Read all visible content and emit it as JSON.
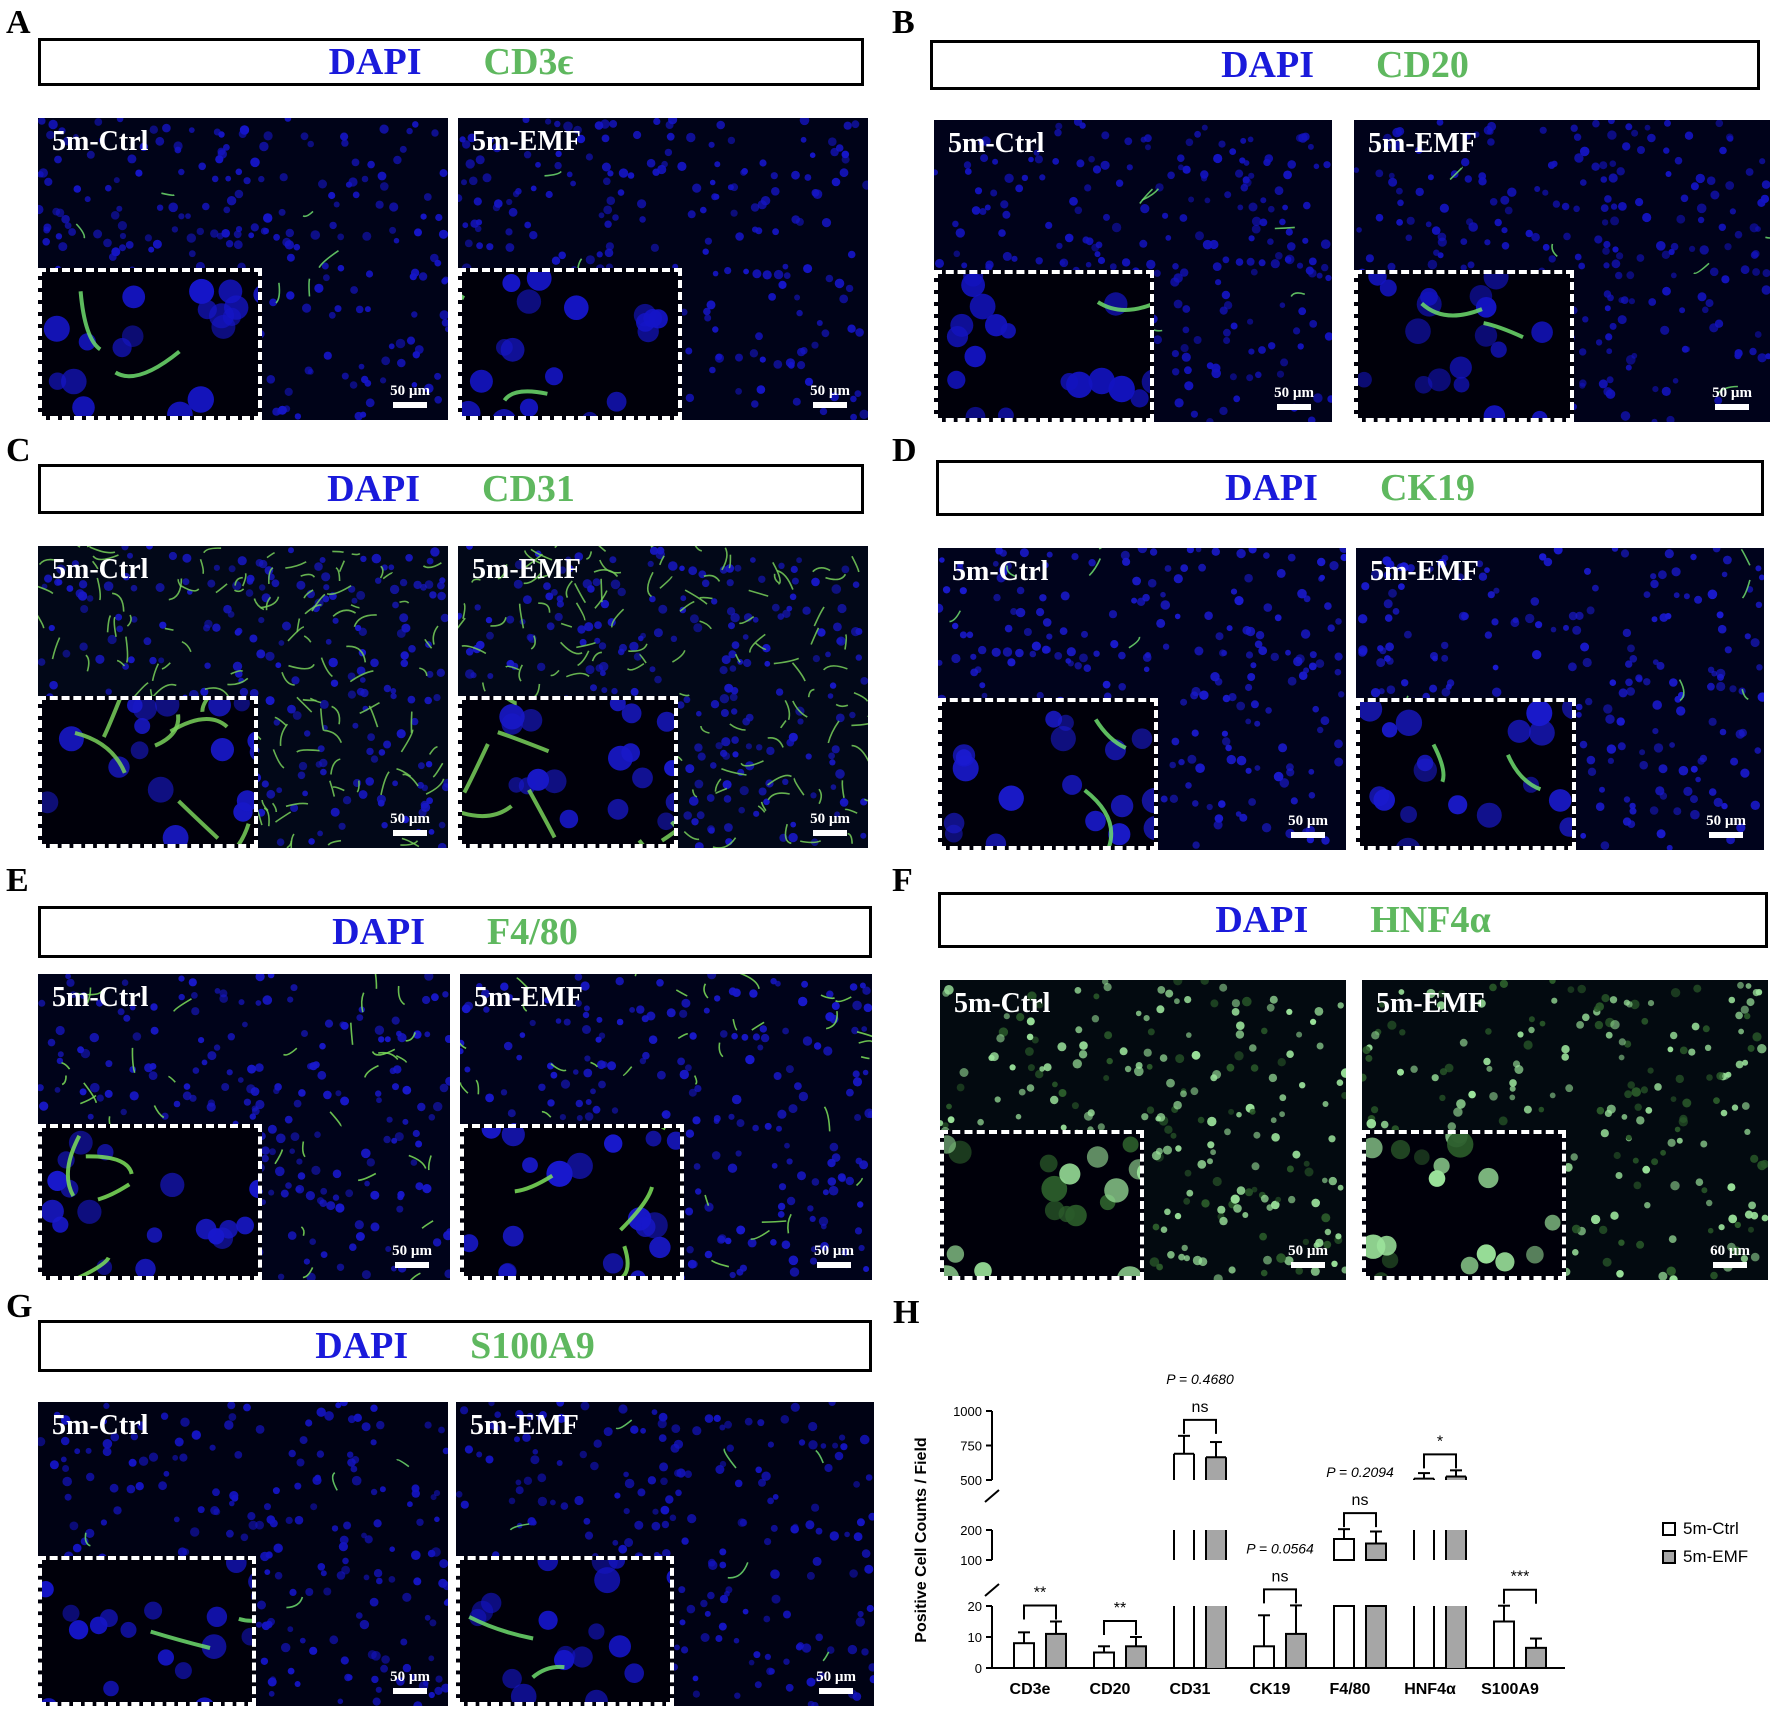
{
  "panels": [
    {
      "letter": "A",
      "dapi": "DAPI",
      "marker": "CD3ϵ",
      "left_label": "5m-Ctrl",
      "right_label": "5m-EMF",
      "scale": "50 µm",
      "right_scale": "50 µm",
      "bg": "#000318",
      "dot": "#1515c8",
      "green": "#6ddc6d",
      "density": "low"
    },
    {
      "letter": "B",
      "dapi": "DAPI",
      "marker": "CD20",
      "left_label": "5m-Ctrl",
      "right_label": "5m-EMF",
      "scale": "50 µm",
      "right_scale": "50 µm",
      "bg": "#00021a",
      "dot": "#1313c0",
      "green": "#6ddc6d",
      "density": "low"
    },
    {
      "letter": "C",
      "dapi": "DAPI",
      "marker": "CD31",
      "left_label": "5m-Ctrl",
      "right_label": "5m-EMF",
      "scale": "50 µm",
      "right_scale": "50 µm",
      "bg": "#020818",
      "dot": "#1818c8",
      "green": "#78d05a",
      "density": "vessel"
    },
    {
      "letter": "D",
      "dapi": "DAPI",
      "marker": "CK19",
      "left_label": "5m-Ctrl",
      "right_label": "5m-EMF",
      "scale": "50 µm",
      "right_scale": "50 µm",
      "bg": "#00031c",
      "dot": "#1a1ad0",
      "green": "#6ddc6d",
      "density": "low"
    },
    {
      "letter": "E",
      "dapi": "DAPI",
      "marker": "F4/80",
      "left_label": "5m-Ctrl",
      "right_label": "5m-EMF",
      "scale": "50 µm",
      "right_scale": "50 µm",
      "bg": "#00031a",
      "dot": "#1818cc",
      "green": "#7ce05a",
      "density": "mid"
    },
    {
      "letter": "F",
      "dapi": "DAPI",
      "marker": "HNF4α",
      "left_label": "5m-Ctrl",
      "right_label": "5m-EMF",
      "scale": "50 µm",
      "right_scale": "60 µm",
      "bg": "#030a10",
      "dot": "#9be39b",
      "green": "#9be39b",
      "density": "nuclear"
    },
    {
      "letter": "G",
      "dapi": "DAPI",
      "marker": "S100A9",
      "left_label": "5m-Ctrl",
      "right_label": "5m-EMF",
      "scale": "50 µm",
      "right_scale": "50 µm",
      "bg": "#000214",
      "dot": "#1414c4",
      "green": "#6ddc6d",
      "density": "low"
    }
  ],
  "panel_h_letter": "H",
  "chart_data": {
    "type": "bar",
    "ylabel": "Positive Cell Counts / Field",
    "categories": [
      "CD3e",
      "CD20",
      "CD31",
      "CK19",
      "F4/80",
      "HNF4α",
      "S100A9"
    ],
    "series": [
      {
        "name": "5m-Ctrl",
        "color": "#ffffff",
        "values": [
          8,
          5,
          690,
          7,
          170,
          510,
          15
        ],
        "errors": [
          3.5,
          2,
          130,
          10,
          35,
          40,
          6
        ]
      },
      {
        "name": "5m-EMF",
        "color": "#a6a6a6",
        "values": [
          11,
          7,
          665,
          11,
          155,
          525,
          6.5
        ],
        "errors": [
          4,
          3,
          110,
          11,
          40,
          45,
          3
        ]
      }
    ],
    "y_segments": [
      {
        "range": [
          0,
          20
        ],
        "ticks": [
          "0",
          "10",
          "20"
        ]
      },
      {
        "range": [
          100,
          200
        ],
        "ticks": [
          "100",
          "200"
        ]
      },
      {
        "range": [
          500,
          1000
        ],
        "ticks": [
          "500",
          "750",
          "1000"
        ]
      }
    ],
    "significance": [
      {
        "category": "CD3e",
        "label": "**",
        "p": ""
      },
      {
        "category": "CD20",
        "label": "**",
        "p": ""
      },
      {
        "category": "CD31",
        "label": "ns",
        "p": "P = 0.4680"
      },
      {
        "category": "CK19",
        "label": "ns",
        "p": "P = 0.0564"
      },
      {
        "category": "F4/80",
        "label": "ns",
        "p": "P = 0.2094"
      },
      {
        "category": "HNF4α",
        "label": "*",
        "p": ""
      },
      {
        "category": "S100A9",
        "label": "***",
        "p": ""
      }
    ],
    "legend_position": "right"
  }
}
